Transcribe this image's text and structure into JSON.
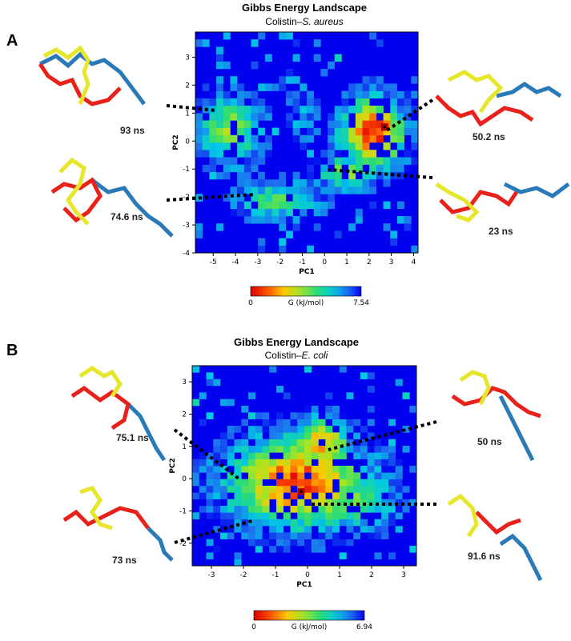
{
  "panels": [
    {
      "letter": "A",
      "title": "Gibbs Energy Landscape",
      "subtitle_prefix": "Colistin–",
      "subtitle_italic": "S. aureus",
      "snapshots": [
        "93 ns",
        "74.6 ns",
        "50.2 ns",
        "23 ns"
      ]
    },
    {
      "letter": "B",
      "title": "Gibbs Energy Landscape",
      "subtitle_prefix": "Colistin–",
      "subtitle_italic": "E. coli",
      "snapshots": [
        "75.1 ns",
        "73 ns",
        "50 ns",
        "91.6 ns"
      ]
    }
  ],
  "colors": {
    "background_bin": "#0000ee",
    "molecule_red": "#e8211b",
    "molecule_yellow": "#e6e62a",
    "molecule_blue": "#2a7ab8"
  },
  "chart_data": [
    {
      "type": "heatmap",
      "title": "Gibbs Energy Landscape",
      "subtitle": "Colistin–S. aureus",
      "xlabel": "PC1",
      "ylabel": "PC2",
      "xlim": [
        -5.8,
        4.2
      ],
      "ylim": [
        -4.0,
        3.9
      ],
      "xticks": [
        -5,
        -4,
        -3,
        -2,
        -1,
        0,
        1,
        2,
        3,
        4
      ],
      "yticks": [
        -4,
        -3,
        -2,
        -1,
        0,
        1,
        2,
        3
      ],
      "colorbar": {
        "label": "G (kJ/mol)",
        "min": 0,
        "max": 7.54
      },
      "minimum": [
        2.7,
        0.5
      ],
      "clusters": [
        {
          "x": -4.2,
          "y": 0.4,
          "sx": 0.9,
          "sy": 0.8,
          "depth": 4.0
        },
        {
          "x": -2.0,
          "y": -2.1,
          "sx": 1.2,
          "sy": 0.45,
          "depth": 3.2
        },
        {
          "x": 2.2,
          "y": 0.3,
          "sx": 0.9,
          "sy": 0.8,
          "depth": 7.0
        },
        {
          "x": 1.0,
          "y": -1.1,
          "sx": 0.9,
          "sy": 0.4,
          "depth": 3.6
        },
        {
          "x": -1.0,
          "y": 0.8,
          "sx": 0.5,
          "sy": 0.6,
          "depth": 1.5
        }
      ]
    },
    {
      "type": "heatmap",
      "title": "Gibbs Energy Landscape",
      "subtitle": "Colistin–E. coli",
      "xlabel": "PC1",
      "ylabel": "PC2",
      "xlim": [
        -3.6,
        3.4
      ],
      "ylim": [
        -2.7,
        3.5
      ],
      "xticks": [
        -3,
        -2,
        -1,
        0,
        1,
        2,
        3
      ],
      "yticks": [
        -2,
        -1,
        0,
        1,
        2,
        3
      ],
      "colorbar": {
        "label": "G (kJ/mol)",
        "min": 0,
        "max": 6.94
      },
      "minimum": [
        -0.2,
        -0.4
      ],
      "clusters": [
        {
          "x": -0.3,
          "y": -0.1,
          "sx": 1.4,
          "sy": 0.9,
          "depth": 6.2
        },
        {
          "x": 0.4,
          "y": 1.1,
          "sx": 0.6,
          "sy": 0.5,
          "depth": 5.2
        },
        {
          "x": -1.5,
          "y": -0.6,
          "sx": 0.6,
          "sy": 0.5,
          "depth": 3.5
        },
        {
          "x": 1.5,
          "y": -0.6,
          "sx": 0.8,
          "sy": 0.6,
          "depth": 3.5
        }
      ]
    }
  ]
}
